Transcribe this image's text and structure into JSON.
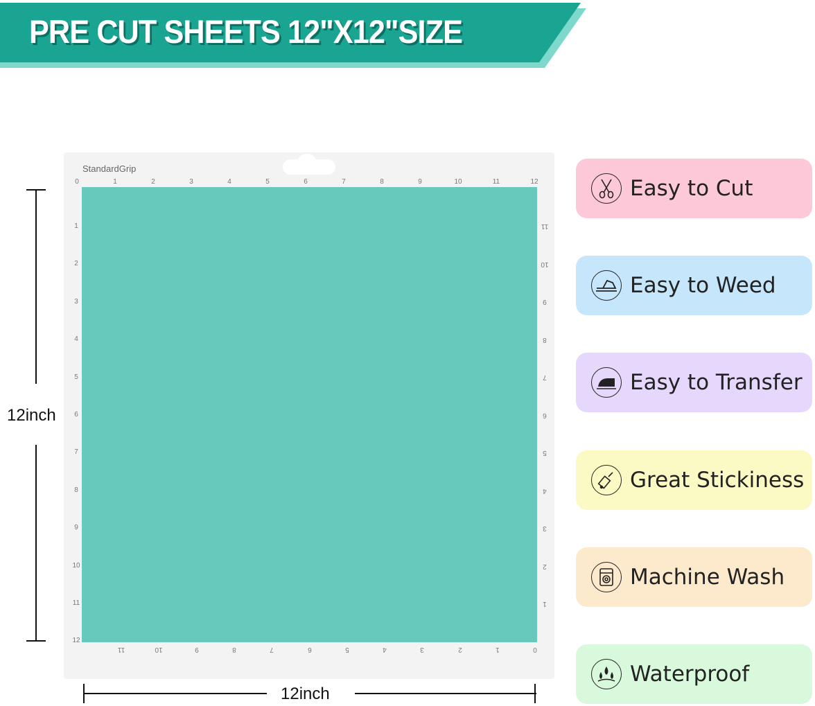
{
  "banner": {
    "title": "PRE CUT SHEETS 12\"X12\"SIZE",
    "color": "#1aa593",
    "shadow_color": "#7fd8cc"
  },
  "mat": {
    "brand": "StandardGrip",
    "sheet_color": "#67c9bc",
    "top_numbers": [
      "0",
      "1",
      "2",
      "3",
      "4",
      "5",
      "6",
      "7",
      "8",
      "9",
      "10",
      "11",
      "12"
    ],
    "left_numbers": [
      "1",
      "2",
      "3",
      "4",
      "5",
      "6",
      "7",
      "8",
      "9",
      "10",
      "11",
      "12"
    ],
    "right_numbers": [
      "11",
      "10",
      "9",
      "8",
      "7",
      "6",
      "5",
      "4",
      "3",
      "2",
      "1"
    ],
    "bottom_numbers": [
      "11",
      "10",
      "9",
      "8",
      "7",
      "6",
      "5",
      "4",
      "3",
      "2",
      "1",
      "0"
    ]
  },
  "dimensions": {
    "height_label": "12inch",
    "width_label": "12inch"
  },
  "features": [
    {
      "label": "Easy to Cut",
      "icon": "scissors-icon",
      "color": "#fdc8d8"
    },
    {
      "label": "Easy to Weed",
      "icon": "weeding-tool-icon",
      "color": "#c6e6fb"
    },
    {
      "label": "Easy to Transfer",
      "icon": "iron-icon",
      "color": "#e6d8fc"
    },
    {
      "label": "Great Stickiness",
      "icon": "glue-bottle-icon",
      "color": "#fbfac4"
    },
    {
      "label": "Machine Wash",
      "icon": "washing-machine-icon",
      "color": "#fde9cb"
    },
    {
      "label": "Waterproof",
      "icon": "water-drops-icon",
      "color": "#d9f9dc"
    }
  ]
}
